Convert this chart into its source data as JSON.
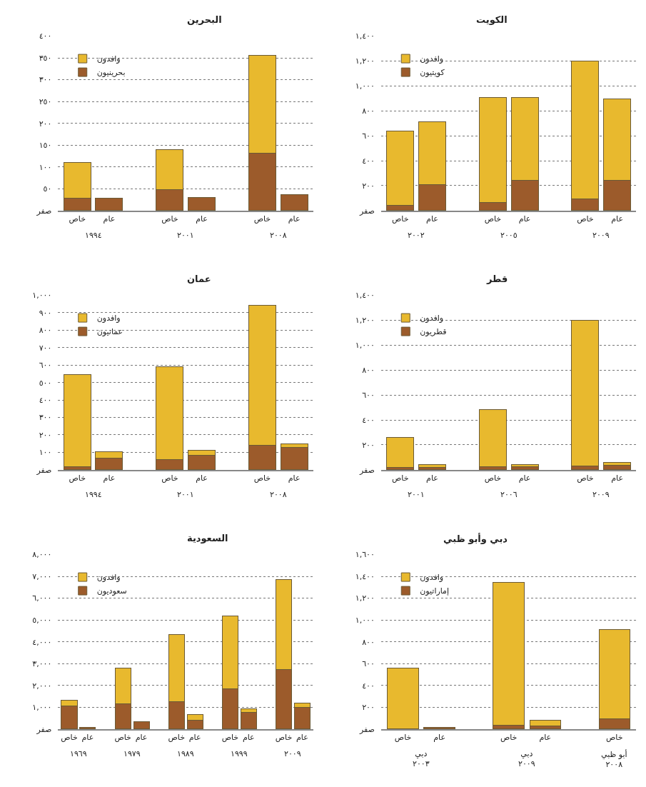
{
  "chart_data": [
    {
      "type": "bar",
      "title": "البحرين",
      "categories": [
        "خاص",
        "عام",
        "خاص",
        "عام",
        "خاص",
        "عام"
      ],
      "annotations": [
        "١٩٩٤",
        "٢٠٠١",
        "٢٠٠٨"
      ],
      "stacked": true,
      "grid": "y",
      "legend": "top left",
      "series": [
        {
          "name": "بحرينيون",
          "color": "#9c5b2b",
          "values": [
            28,
            28,
            48,
            30,
            132,
            36
          ]
        },
        {
          "name": "وافدون",
          "color": "#e8b92e",
          "values": [
            82,
            null,
            91,
            null,
            224,
            null
          ]
        }
      ],
      "ylim": [
        0,
        400
      ],
      "yticks": [
        {
          "value": 0,
          "label": "صفر"
        },
        {
          "value": 50,
          "label": "٥٠"
        },
        {
          "value": 100,
          "label": "١٠٠"
        },
        {
          "value": 150,
          "label": "١٥٠"
        },
        {
          "value": 200,
          "label": "٢٠٠"
        },
        {
          "value": 250,
          "label": "٢٥٠"
        },
        {
          "value": 300,
          "label": "٣٠٠"
        },
        {
          "value": 350,
          "label": "٣٥٠"
        },
        {
          "value": 400,
          "label": "٤٠٠"
        }
      ]
    },
    {
      "type": "bar",
      "title": "الكويت",
      "categories": [
        "خاص",
        "عام",
        "خاص",
        "عام",
        "خاص",
        "عام"
      ],
      "annotations": [
        "٢٠٠٢",
        "٢٠٠٥",
        "٢٠٠٩"
      ],
      "stacked": true,
      "grid": "y",
      "legend": "top left",
      "series": [
        {
          "name": "كويتيون",
          "color": "#9c5b2b",
          "values": [
            42,
            210,
            63,
            240,
            96,
            240
          ]
        },
        {
          "name": "وافدون",
          "color": "#e8b92e",
          "values": [
            596,
            505,
            842,
            665,
            1104,
            654
          ]
        }
      ],
      "ylim": [
        0,
        1400
      ],
      "yticks": [
        {
          "value": 0,
          "label": "صفر"
        },
        {
          "value": 200,
          "label": "٢٠٠"
        },
        {
          "value": 400,
          "label": "٤٠٠"
        },
        {
          "value": 600,
          "label": "٦٠٠"
        },
        {
          "value": 800,
          "label": "٨٠٠"
        },
        {
          "value": 1000,
          "label": "١,٠٠٠"
        },
        {
          "value": 1200,
          "label": "١,٢٠٠"
        },
        {
          "value": 1400,
          "label": "١,٤٠٠"
        }
      ]
    },
    {
      "type": "bar",
      "title": "عمان",
      "categories": [
        "خاص",
        "عام",
        "خاص",
        "عام",
        "خاص",
        "عام"
      ],
      "annotations": [
        "١٩٩٤",
        "٢٠٠١",
        "٢٠٠٨"
      ],
      "stacked": true,
      "grid": "y",
      "legend": "top left",
      "series": [
        {
          "name": "عمانيون",
          "color": "#9c5b2b",
          "values": [
            18,
            69,
            57,
            84,
            141,
            128
          ]
        },
        {
          "name": "وافدون",
          "color": "#e8b92e",
          "values": [
            527,
            35,
            534,
            27,
            802,
            22
          ]
        }
      ],
      "ylim": [
        0,
        1000
      ],
      "yticks": [
        {
          "value": 0,
          "label": "صفر"
        },
        {
          "value": 100,
          "label": "١٠٠"
        },
        {
          "value": 200,
          "label": "٢٠٠"
        },
        {
          "value": 300,
          "label": "٣٠٠"
        },
        {
          "value": 400,
          "label": "٤٠٠"
        },
        {
          "value": 500,
          "label": "٥٠٠"
        },
        {
          "value": 600,
          "label": "٦٠٠"
        },
        {
          "value": 700,
          "label": "٧٠٠"
        },
        {
          "value": 800,
          "label": "٨٠٠"
        },
        {
          "value": 900,
          "label": "٩٠٠"
        },
        {
          "value": 1000,
          "label": "١,٠٠٠"
        }
      ]
    },
    {
      "type": "bar",
      "title": "قطر",
      "categories": [
        "خاص",
        "عام",
        "خاص",
        "عام",
        "خاص",
        "عام"
      ],
      "annotations": [
        "٢٠٠١",
        "٢٠٠٦",
        "٢٠٠٩"
      ],
      "stacked": true,
      "grid": "y",
      "legend": "top left",
      "series": [
        {
          "name": "قطريون",
          "color": "#9c5b2b",
          "values": [
            18,
            21,
            25,
            25,
            30,
            34
          ]
        },
        {
          "name": "وافدون",
          "color": "#e8b92e",
          "values": [
            242,
            21,
            460,
            19,
            1170,
            24
          ]
        }
      ],
      "ylim": [
        0,
        1400
      ],
      "yticks": [
        {
          "value": 0,
          "label": "صفر"
        },
        {
          "value": 200,
          "label": "٢٠٠"
        },
        {
          "value": 400,
          "label": "٤٠٠"
        },
        {
          "value": 600,
          "label": "٦٠٠"
        },
        {
          "value": 800,
          "label": "٨٠٠"
        },
        {
          "value": 1000,
          "label": "١,٠٠٠"
        },
        {
          "value": 1200,
          "label": "١,٢٠٠"
        },
        {
          "value": 1400,
          "label": "١,٤٠٠"
        }
      ]
    },
    {
      "type": "bar",
      "title": "السعودية",
      "categories": [
        "خاص",
        "عام",
        "خاص",
        "عام",
        "خاص",
        "عام",
        "خاص",
        "عام",
        "خاص",
        "عام"
      ],
      "annotations": [
        "١٩٦٩",
        "١٩٧٩",
        "١٩٨٩",
        "١٩٩٩",
        "٢٠٠٩"
      ],
      "stacked": true,
      "grid": "y",
      "legend": "top left",
      "series": [
        {
          "name": "سعوديون",
          "color": "#9c5b2b",
          "values": [
            1060,
            70,
            1160,
            330,
            1240,
            410,
            1830,
            750,
            2740,
            1000
          ]
        },
        {
          "name": "وافدون",
          "color": "#e8b92e",
          "values": [
            260,
            null,
            1650,
            null,
            3100,
            250,
            3340,
            170,
            4120,
            180
          ]
        }
      ],
      "ylim": [
        0,
        8000
      ],
      "yticks": [
        {
          "value": 0,
          "label": "صفر"
        },
        {
          "value": 1000,
          "label": "١,٠٠٠"
        },
        {
          "value": 2000,
          "label": "٢,٠٠٠"
        },
        {
          "value": 3000,
          "label": "٣,٠٠٠"
        },
        {
          "value": 4000,
          "label": "٤,٠٠٠"
        },
        {
          "value": 5000,
          "label": "٥,٠٠٠"
        },
        {
          "value": 6000,
          "label": "٦,٠٠٠"
        },
        {
          "value": 7000,
          "label": "٧,٠٠٠"
        },
        {
          "value": 8000,
          "label": "٨,٠٠٠"
        }
      ]
    },
    {
      "type": "bar",
      "title": "دبي وأبو ظبي",
      "categories": [
        "خاص",
        "عام",
        "خاص",
        "عام",
        "خاص"
      ],
      "annotations": [
        "دبي\n٢٠٠٣",
        "دبي\n٢٠٠٩",
        "أبو ظبي\n٢٠٠٨"
      ],
      "stacked": true,
      "grid": "y",
      "legend": "top left",
      "series": [
        {
          "name": "إماراتيون",
          "color": "#9c5b2b",
          "values": [
            5,
            17,
            35,
            28,
            93
          ]
        },
        {
          "name": "وافدون",
          "color": "#e8b92e",
          "values": [
            553,
            null,
            1308,
            54,
            822
          ]
        }
      ],
      "ylim": [
        0,
        1600
      ],
      "yticks": [
        {
          "value": 0,
          "label": "صفر"
        },
        {
          "value": 200,
          "label": "٢٠٠"
        },
        {
          "value": 400,
          "label": "٤٠٠"
        },
        {
          "value": 600,
          "label": "٦٠٠"
        },
        {
          "value": 800,
          "label": "٨٠٠"
        },
        {
          "value": 1000,
          "label": "١,٠٠٠"
        },
        {
          "value": 1200,
          "label": "١,٢٠٠"
        },
        {
          "value": 1400,
          "label": "١,٤٠٠"
        },
        {
          "value": 1600,
          "label": "١,٦٠٠"
        }
      ]
    }
  ]
}
